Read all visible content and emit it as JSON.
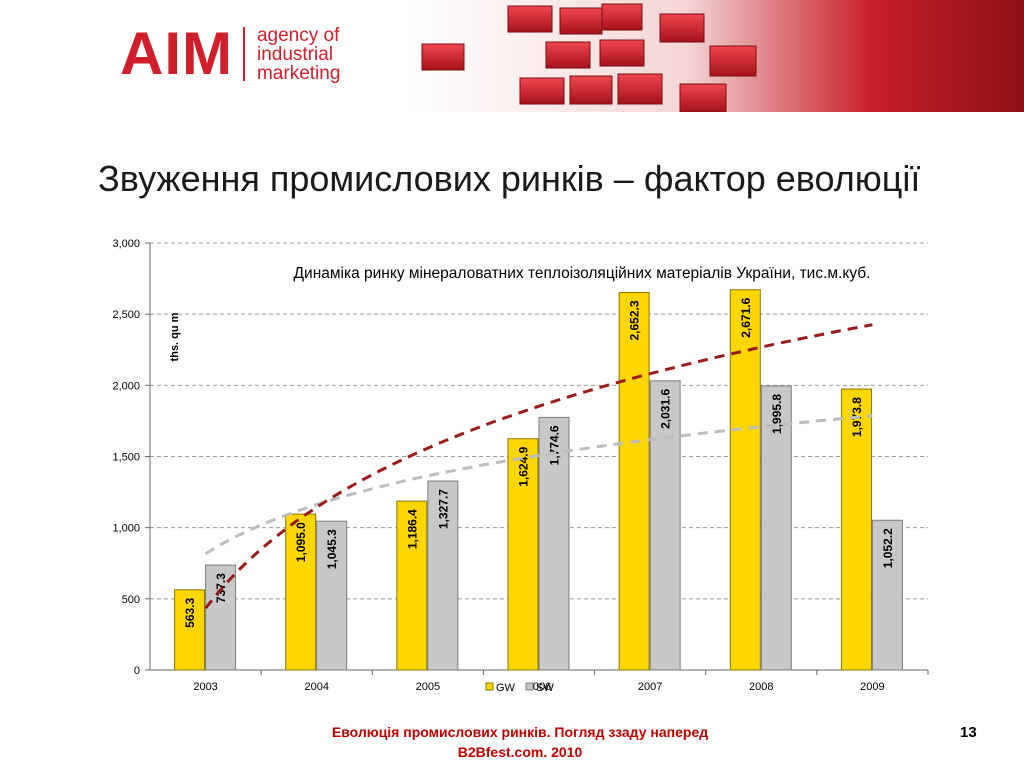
{
  "header": {
    "logo_mark": "AIM",
    "logo_lines": [
      "agency of",
      "industrial",
      "marketing"
    ]
  },
  "slide": {
    "title": "Звуження промислових ринків – фактор еволюції",
    "footer_line1": "Еволюція промислових ринків. Погляд ззаду наперед",
    "footer_line2": "B2Bfest.com. 2010",
    "page_number": "13"
  },
  "colors": {
    "brand_red": "#d01f2b",
    "gw_bar": "#ffd700",
    "sw_bar": "#c8c8c8",
    "gw_trend": "#9b1b1b",
    "sw_trend": "#bdbdbd"
  },
  "chart_data": {
    "type": "bar",
    "title": "Динаміка ринку мінераловатних теплоізоляційних матеріалів України, тис.м.куб.",
    "ylabel": "ths. qu m",
    "xlabel": "",
    "categories": [
      "2003",
      "2004",
      "2005",
      "2006",
      "2007",
      "2008",
      "2009"
    ],
    "series": [
      {
        "name": "GW",
        "values": [
          563.3,
          1095.0,
          1186.4,
          1624.9,
          2652.3,
          2671.6,
          1973.8
        ],
        "labels": [
          "563.3",
          "1,095.0",
          "1,186.4",
          "1,624.9",
          "2,652.3",
          "2,671.6",
          "1,973.8"
        ]
      },
      {
        "name": "SW",
        "values": [
          737.3,
          1045.3,
          1327.7,
          1774.6,
          2031.6,
          1995.8,
          1052.2
        ],
        "labels": [
          "737.3",
          "1,045.3",
          "1,327.7",
          "1,774.6",
          "2,031.6",
          "1,995.8",
          "1,052.2"
        ]
      }
    ],
    "ylim": [
      0,
      3000
    ],
    "yticks": [
      0,
      500,
      1000,
      1500,
      2000,
      2500,
      3000
    ],
    "ytick_labels": [
      "0",
      "500",
      "1,000",
      "1,500",
      "2,000",
      "2,500",
      "3,000"
    ],
    "grid": true,
    "legend": "bottom-center",
    "trendlines": true
  }
}
